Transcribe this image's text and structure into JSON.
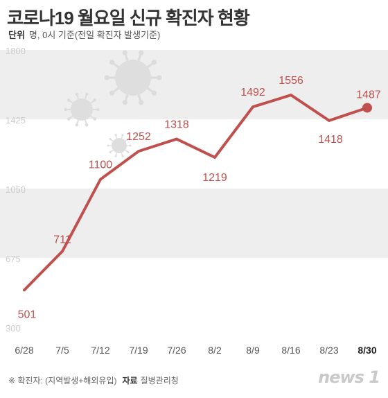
{
  "header": {
    "title": "코로나19 월요일 신규 확진자 현황",
    "unit_label": "단위",
    "unit_text": "명, 0시 기준(전일 확진자 발생기준)"
  },
  "footer": {
    "note": "※ 확진자: (지역발생+해외유입)",
    "source_label": "자료",
    "source": "질병관리청",
    "logo": "news 1"
  },
  "colors": {
    "line": "#c0504d",
    "label": "#c0504d",
    "band": "#eeeeee",
    "tick": "#cccccc",
    "axis_text": "#555555"
  },
  "chart_data": {
    "type": "line",
    "categories": [
      "6/28",
      "7/5",
      "7/12",
      "7/19",
      "7/26",
      "8/2",
      "8/9",
      "8/16",
      "8/23",
      "8/30"
    ],
    "values": [
      501,
      711,
      1100,
      1252,
      1318,
      1219,
      1492,
      1556,
      1418,
      1487
    ],
    "ylim": [
      300,
      1800
    ],
    "yticks": [
      1800,
      1425,
      1050,
      675,
      300
    ],
    "highlight_last": true,
    "grid": "alternating bands",
    "legend": "none"
  }
}
